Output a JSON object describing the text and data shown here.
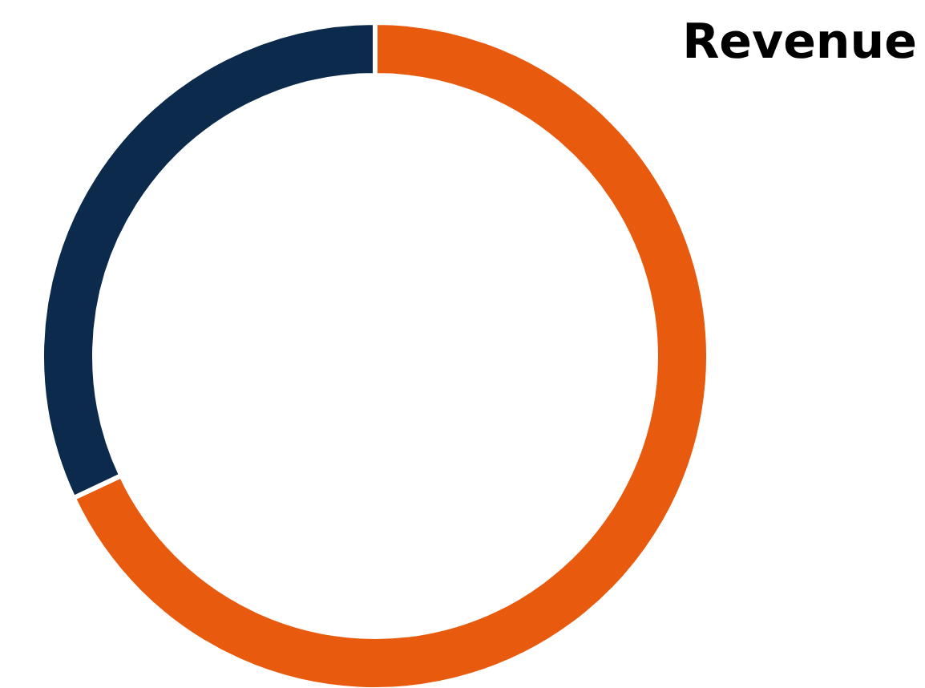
{
  "chart_data": {
    "type": "donut",
    "title": "Revenue",
    "categories": [
      null,
      null
    ],
    "values": [
      68,
      32
    ],
    "colors": [
      "#e85a0e",
      "#0c2a4b"
    ]
  }
}
